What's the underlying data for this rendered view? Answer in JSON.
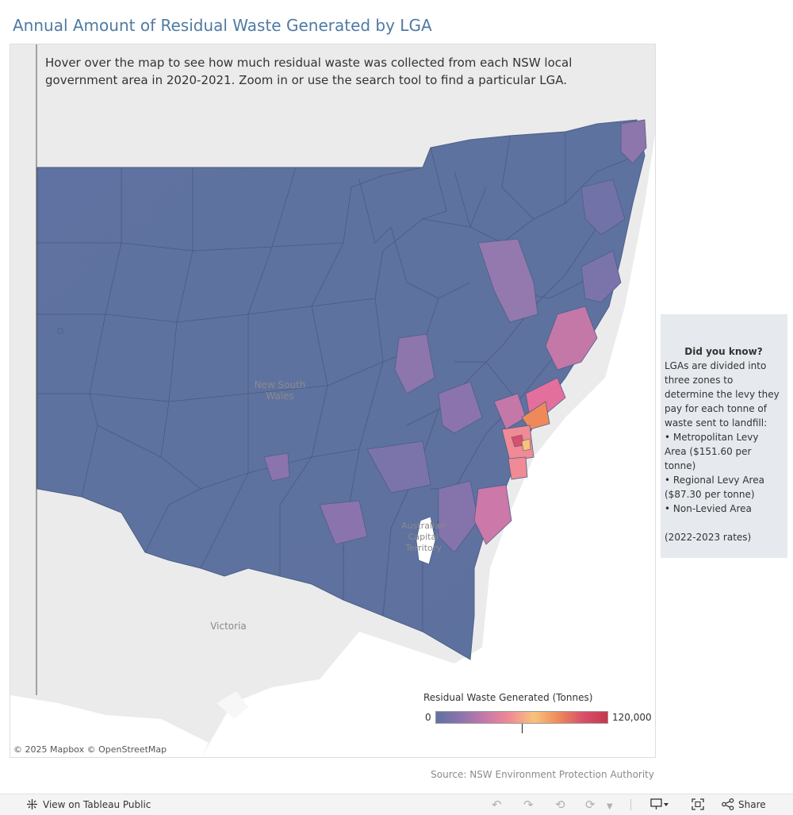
{
  "title": "Annual Amount of Residual Waste Generated by LGA",
  "map": {
    "intro": "Hover over the map to see how much residual waste was collected from each NSW local government area in 2020-2021. Zoom in or use the search tool to find a particular LGA.",
    "labels": {
      "nsw": "New South Wales",
      "act": "Australian Capital Territory",
      "victoria": "Victoria"
    },
    "attribution": "© 2025 Mapbox  © OpenStreetMap",
    "legend": {
      "title": "Residual Waste Generated (Tonnes)",
      "min": "0",
      "max": "120,000",
      "marker_fraction": 0.5,
      "colors": [
        "#5f72a1",
        "#8b74ad",
        "#c678aa",
        "#f08a94",
        "#f7c37a",
        "#ee8a5a",
        "#d8506a",
        "#c9364f"
      ]
    }
  },
  "info_box": {
    "title": "Did you know?",
    "intro": "LGAs are divided into three zones to determine the levy they pay for each tonne of waste sent to landfill:",
    "items": [
      "• Metropolitan Levy Area ($151.60 per tonne)",
      "• Regional Levy Area ($87.30 per tonne)",
      "• Non-Levied Area"
    ],
    "footnote": "(2022-2023 rates)"
  },
  "source": "Source: NSW Environment Protection Authority",
  "toolbar": {
    "view_label": "View on Tableau Public",
    "share_label": "Share",
    "icons": [
      "tableau-logo-icon",
      "undo-icon",
      "redo-icon",
      "revert-icon",
      "refresh-icon",
      "download-icon",
      "fullscreen-icon",
      "share-icon"
    ]
  }
}
